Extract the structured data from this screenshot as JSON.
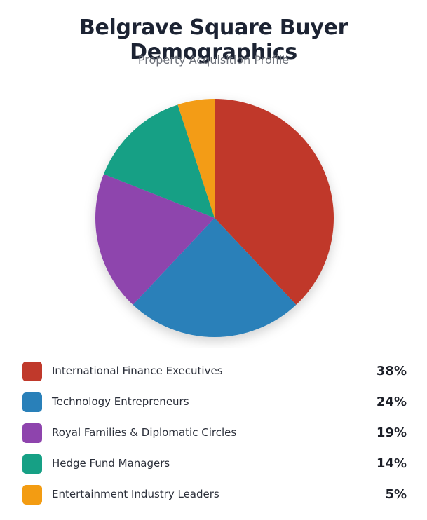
{
  "chart_data": {
    "type": "pie",
    "title": "Belgrave Square Buyer Demographics",
    "subtitle": "Property Acquisition Profile",
    "categories": [
      "International Finance Executives",
      "Technology Entrepreneurs",
      "Royal Families & Diplomatic Circles",
      "Hedge Fund Managers",
      "Entertainment Industry Leaders"
    ],
    "values": [
      38,
      24,
      19,
      14,
      5
    ],
    "value_labels": [
      "38%",
      "24%",
      "19%",
      "14%",
      "5%"
    ],
    "colors": [
      "#c0392b",
      "#2980b9",
      "#8e44ad",
      "#16a085",
      "#f39c12"
    ],
    "legend_position": "bottom"
  }
}
